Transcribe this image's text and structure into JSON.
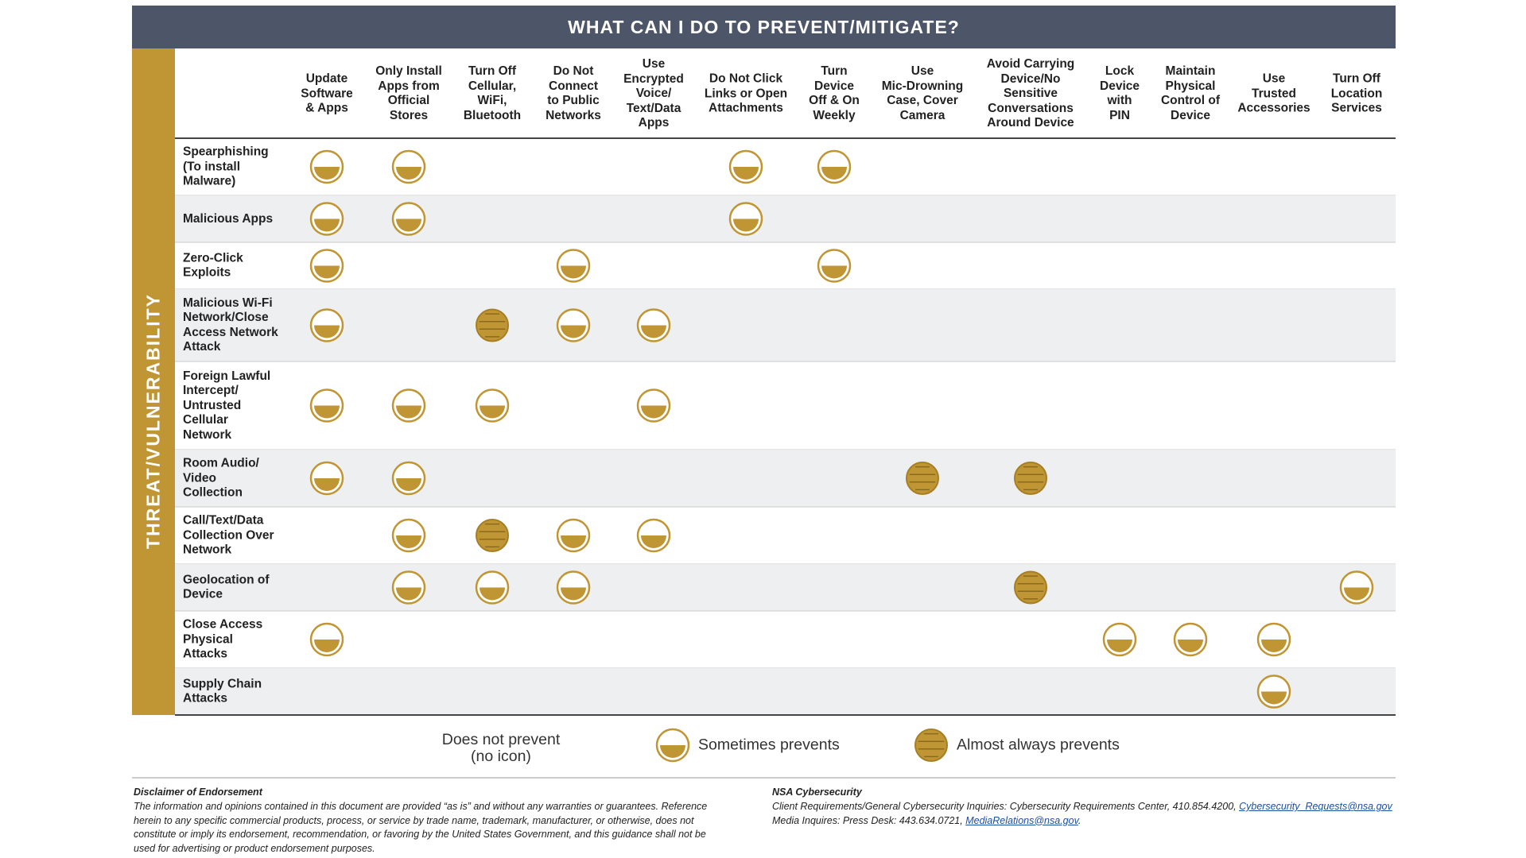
{
  "header": {
    "title": "WHAT CAN I DO TO PREVENT/MITIGATE?"
  },
  "row_header": "THREAT/VULNERABILITY",
  "columns": [
    "Update\nSoftware\n& Apps",
    "Only Install\nApps from\nOfficial\nStores",
    "Turn Off\nCellular,\nWiFi,\nBluetooth",
    "Do Not\nConnect\nto Public\nNetworks",
    "Use\nEncrypted\nVoice/\nText/Data\nApps",
    "Do Not Click\nLinks or Open\nAttachments",
    "Turn\nDevice\nOff & On\nWeekly",
    "Use\nMic-Drowning\nCase, Cover\nCamera",
    "Avoid Carrying\nDevice/No\nSensitive\nConversations\nAround Device",
    "Lock\nDevice\nwith\nPIN",
    "Maintain\nPhysical\nControl of\nDevice",
    "Use\nTrusted\nAccessories",
    "Turn Off\nLocation\nServices"
  ],
  "rows": [
    {
      "label": "Spearphishing\n(To install\nMalware)",
      "cells": [
        1,
        1,
        0,
        0,
        0,
        1,
        1,
        0,
        0,
        0,
        0,
        0,
        0
      ]
    },
    {
      "label": "Malicious Apps",
      "cells": [
        1,
        1,
        0,
        0,
        0,
        1,
        0,
        0,
        0,
        0,
        0,
        0,
        0
      ]
    },
    {
      "label": "Zero-Click\nExploits",
      "cells": [
        1,
        0,
        0,
        1,
        0,
        0,
        1,
        0,
        0,
        0,
        0,
        0,
        0
      ]
    },
    {
      "label": "Malicious Wi-Fi\nNetwork/Close\nAccess Network\nAttack",
      "cells": [
        1,
        0,
        2,
        1,
        1,
        0,
        0,
        0,
        0,
        0,
        0,
        0,
        0
      ]
    },
    {
      "label": "Foreign Lawful\nIntercept/\nUntrusted\nCellular\nNetwork",
      "cells": [
        1,
        1,
        1,
        0,
        1,
        0,
        0,
        0,
        0,
        0,
        0,
        0,
        0
      ]
    },
    {
      "label": "Room Audio/\nVideo\nCollection",
      "cells": [
        1,
        1,
        0,
        0,
        0,
        0,
        0,
        2,
        2,
        0,
        0,
        0,
        0
      ]
    },
    {
      "label": "Call/Text/Data\nCollection Over\nNetwork",
      "cells": [
        0,
        1,
        2,
        1,
        1,
        0,
        0,
        0,
        0,
        0,
        0,
        0,
        0
      ]
    },
    {
      "label": "Geolocation of\nDevice",
      "cells": [
        0,
        1,
        1,
        1,
        0,
        0,
        0,
        0,
        2,
        0,
        0,
        0,
        1
      ]
    },
    {
      "label": "Close Access\nPhysical\nAttacks",
      "cells": [
        1,
        0,
        0,
        0,
        0,
        0,
        0,
        0,
        0,
        1,
        1,
        1,
        0
      ]
    },
    {
      "label": "Supply Chain\nAttacks",
      "cells": [
        0,
        0,
        0,
        0,
        0,
        0,
        0,
        0,
        0,
        0,
        0,
        1,
        0
      ]
    }
  ],
  "legend": [
    {
      "label": "Does not prevent\n(no icon)",
      "icon": "none"
    },
    {
      "label": "Sometimes prevents",
      "icon": "half"
    },
    {
      "label": "Almost always prevents",
      "icon": "striped"
    }
  ],
  "footer": {
    "left": {
      "title": "Disclaimer of Endorsement",
      "lines": [
        "The information and opinions contained in this document are provided “as is” and without any warranties or guarantees. Reference",
        "herein to any specific commercial products, process, or service by trade name, trademark, manufacturer, or otherwise, does not",
        "constitute or imply its endorsement, recommendation, or favoring by the United States Government, and this guidance shall not be",
        "used for advertising or product endorsement purposes."
      ]
    },
    "right": {
      "title": "NSA Cybersecurity",
      "lines": [
        {
          "text": "Client Requirements/General Cybersecurity Inquiries: Cybersecurity Requirements Center, 410.854.4200, ",
          "link": "Cybersecurity_Requests@nsa.gov",
          "suffix": ""
        },
        {
          "text": "Media Inquires: Press Desk: 443.634.0721, ",
          "link": "MediaRelations@nsa.gov",
          "suffix": "."
        }
      ]
    }
  }
}
